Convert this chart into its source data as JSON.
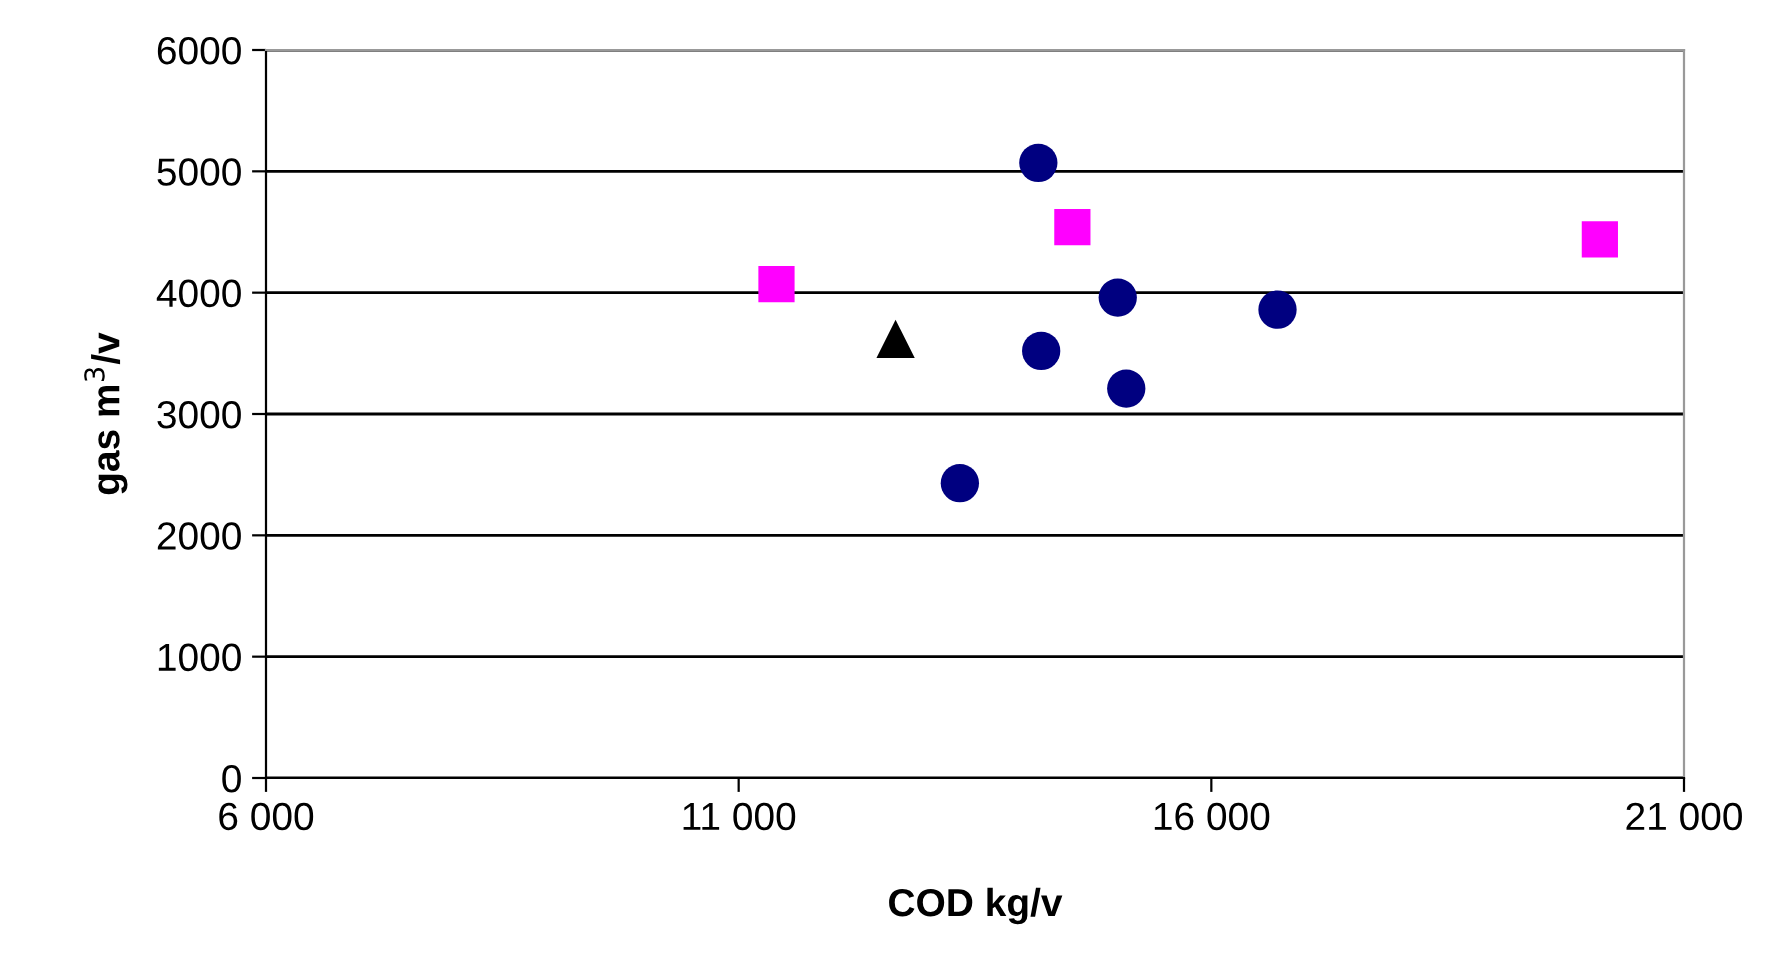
{
  "chart_data": {
    "type": "scatter",
    "xlabel": "COD kg/v",
    "ylabel": "gas m$^{3}$/v",
    "xlim": [
      6000,
      21000
    ],
    "xticks": [
      {
        "value": 6000,
        "label": "6 000"
      },
      {
        "value": 11000,
        "label": "11 000"
      },
      {
        "value": 16000,
        "label": "16 000"
      },
      {
        "value": 21000,
        "label": "21 000"
      }
    ],
    "ylim": [
      0,
      6000
    ],
    "yticks": [
      0,
      1000,
      2000,
      3000,
      4000,
      5000,
      6000
    ],
    "grid": "y",
    "legend": false,
    "series": [
      {
        "color": "#000080",
        "marker": "circle",
        "x": [
          14170,
          14200,
          13340,
          15010,
          15100,
          16700
        ],
        "values": [
          5070,
          3520,
          2430,
          3960,
          3210,
          3860
        ]
      },
      {
        "color": "#ff00ff",
        "marker": "square",
        "x": [
          11400,
          14530,
          20110
        ],
        "values": [
          4070,
          4540,
          4440
        ]
      },
      {
        "color": "#000000",
        "marker": "triangle",
        "x": [
          12660
        ],
        "values": [
          3620
        ]
      }
    ]
  }
}
